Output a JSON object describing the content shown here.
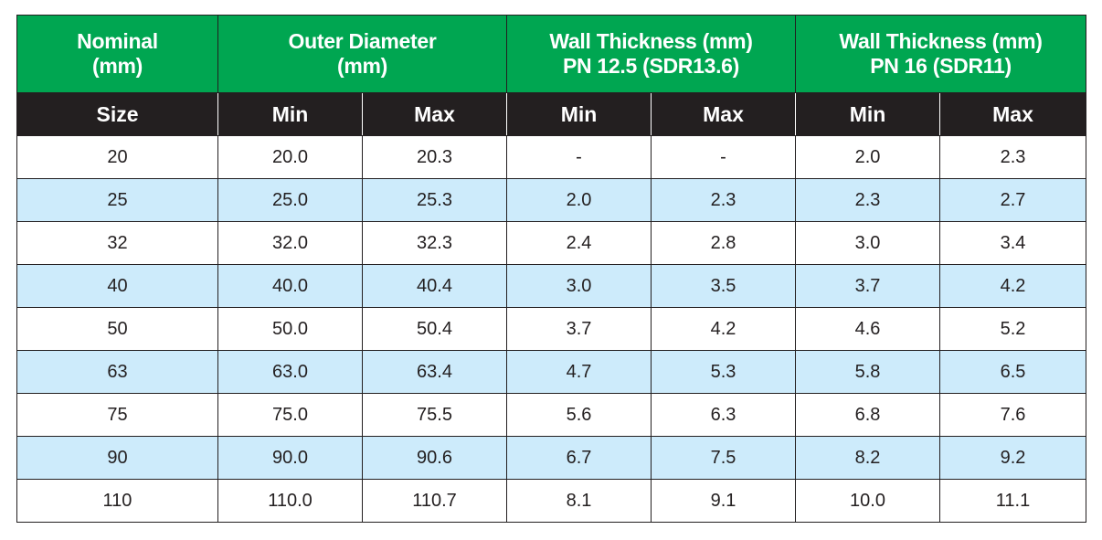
{
  "header_groups": [
    {
      "line1": "Nominal",
      "line2": "(mm)",
      "colspan": 1
    },
    {
      "line1": "Outer Diameter",
      "line2": "(mm)",
      "colspan": 2
    },
    {
      "line1": "Wall Thickness (mm)",
      "line2": "PN 12.5 (SDR13.6)",
      "colspan": 2
    },
    {
      "line1": "Wall Thickness (mm)",
      "line2": "PN 16 (SDR11)",
      "colspan": 2
    }
  ],
  "sub_headers": [
    "Size",
    "Min",
    "Max",
    "Min",
    "Max",
    "Min",
    "Max"
  ],
  "rows": [
    [
      "20",
      "20.0",
      "20.3",
      "-",
      "-",
      "2.0",
      "2.3"
    ],
    [
      "25",
      "25.0",
      "25.3",
      "2.0",
      "2.3",
      "2.3",
      "2.7"
    ],
    [
      "32",
      "32.0",
      "32.3",
      "2.4",
      "2.8",
      "3.0",
      "3.4"
    ],
    [
      "40",
      "40.0",
      "40.4",
      "3.0",
      "3.5",
      "3.7",
      "4.2"
    ],
    [
      "50",
      "50.0",
      "50.4",
      "3.7",
      "4.2",
      "4.6",
      "5.2"
    ],
    [
      "63",
      "63.0",
      "63.4",
      "4.7",
      "5.3",
      "5.8",
      "6.5"
    ],
    [
      "75",
      "75.0",
      "75.5",
      "5.6",
      "6.3",
      "6.8",
      "7.6"
    ],
    [
      "90",
      "90.0",
      "90.6",
      "6.7",
      "7.5",
      "8.2",
      "9.2"
    ],
    [
      "110",
      "110.0",
      "110.7",
      "8.1",
      "9.1",
      "10.0",
      "11.1"
    ]
  ],
  "colors": {
    "header_green": "#00a651",
    "subheader_black": "#231f20",
    "stripe_blue": "#cdebfb",
    "text_dark": "#231f20"
  }
}
